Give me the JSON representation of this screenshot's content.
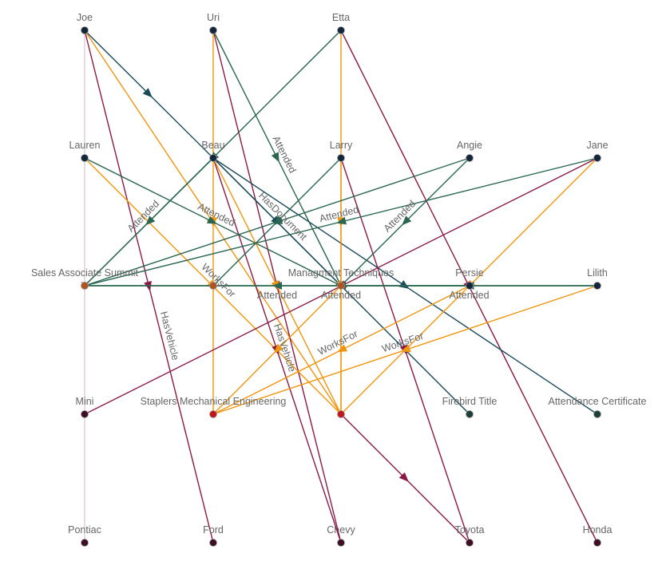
{
  "colors": {
    "Attended": "#2a6650",
    "WorksFor": "#f0950f",
    "HasVehicle": "#8a1a45",
    "HasDocument": "#1b4b5a",
    "HasVehicleFaint": "#d9b6c4",
    "node_person": "#14263a",
    "node_event": "#b0531e",
    "node_org": "#c0171b",
    "node_document": "#1e3f35",
    "node_vehicle": "#3d0f25",
    "label": "#666666"
  },
  "nodes": [
    {
      "id": "joe",
      "label": "Joe",
      "kind": "node_person"
    },
    {
      "id": "uri",
      "label": "Uri",
      "kind": "node_person"
    },
    {
      "id": "etta",
      "label": "Etta",
      "kind": "node_person"
    },
    {
      "id": "lauren",
      "label": "Lauren",
      "kind": "node_person"
    },
    {
      "id": "beau",
      "label": "Beau",
      "kind": "node_person"
    },
    {
      "id": "larry",
      "label": "Larry",
      "kind": "node_person"
    },
    {
      "id": "angie",
      "label": "Angie",
      "kind": "node_person"
    },
    {
      "id": "jane",
      "label": "Jane",
      "kind": "node_person"
    },
    {
      "id": "sas",
      "label": "Sales Associate Summit",
      "kind": "node_event"
    },
    {
      "id": "event2",
      "label": "",
      "kind": "node_event"
    },
    {
      "id": "mgmt",
      "label": "Managment Techniques",
      "kind": "node_event"
    },
    {
      "id": "persie",
      "label": "Persie",
      "kind": "node_person"
    },
    {
      "id": "lilith",
      "label": "Lilith",
      "kind": "node_person"
    },
    {
      "id": "mini",
      "label": "Mini",
      "kind": "node_vehicle"
    },
    {
      "id": "staplers",
      "label": "Staplers Mechanical Engineering",
      "kind": "node_org"
    },
    {
      "id": "org2",
      "label": "",
      "kind": "node_org"
    },
    {
      "id": "firebird",
      "label": "Firebird Title",
      "kind": "node_document"
    },
    {
      "id": "attcert",
      "label": "Attendance Certificate",
      "kind": "node_document"
    },
    {
      "id": "pontiac",
      "label": "Pontiac",
      "kind": "node_vehicle"
    },
    {
      "id": "ford",
      "label": "Ford",
      "kind": "node_vehicle"
    },
    {
      "id": "chevy",
      "label": "Chevy",
      "kind": "node_vehicle"
    },
    {
      "id": "toyota",
      "label": "Toyota",
      "kind": "node_vehicle"
    },
    {
      "id": "honda",
      "label": "Honda",
      "kind": "node_vehicle"
    }
  ],
  "edges": [
    {
      "from": "joe",
      "to": "pontiac",
      "type": "HasVehicleFaint",
      "label": ""
    },
    {
      "from": "joe",
      "to": "ford",
      "type": "HasVehicle",
      "label": "HasVehicle"
    },
    {
      "from": "joe",
      "to": "beau",
      "type": "HasDocument",
      "label": ""
    },
    {
      "from": "joe",
      "to": "org2",
      "type": "WorksFor",
      "label": ""
    },
    {
      "from": "uri",
      "to": "staplers",
      "type": "WorksFor",
      "label": ""
    },
    {
      "from": "uri",
      "to": "chevy",
      "type": "HasVehicle",
      "label": ""
    },
    {
      "from": "uri",
      "to": "mgmt",
      "type": "Attended",
      "label": "Attended"
    },
    {
      "from": "etta",
      "to": "sas",
      "type": "Attended",
      "label": ""
    },
    {
      "from": "etta",
      "to": "org2",
      "type": "WorksFor",
      "label": ""
    },
    {
      "from": "etta",
      "to": "honda",
      "type": "HasVehicle",
      "label": ""
    },
    {
      "from": "lauren",
      "to": "mgmt",
      "type": "Attended",
      "label": "Attended"
    },
    {
      "from": "lauren",
      "to": "org2",
      "type": "WorksFor",
      "label": "WorksFor"
    },
    {
      "from": "beau",
      "to": "sas",
      "type": "Attended",
      "label": "Attended"
    },
    {
      "from": "beau",
      "to": "mgmt",
      "type": "HasDocument",
      "label": "HasDocument"
    },
    {
      "from": "beau",
      "to": "firebird",
      "type": "HasDocument",
      "label": ""
    },
    {
      "from": "beau",
      "to": "attcert",
      "type": "HasDocument",
      "label": ""
    },
    {
      "from": "beau",
      "to": "chevy",
      "type": "HasVehicle",
      "label": "HasVehicle"
    },
    {
      "from": "beau",
      "to": "org2",
      "type": "WorksFor",
      "label": ""
    },
    {
      "from": "larry",
      "to": "event2",
      "type": "Attended",
      "label": ""
    },
    {
      "from": "larry",
      "to": "org2",
      "type": "WorksFor",
      "label": ""
    },
    {
      "from": "larry",
      "to": "toyota",
      "type": "HasVehicle",
      "label": ""
    },
    {
      "from": "angie",
      "to": "mgmt",
      "type": "Attended",
      "label": "Attended"
    },
    {
      "from": "angie",
      "to": "sas",
      "type": "Attended",
      "label": ""
    },
    {
      "from": "jane",
      "to": "sas",
      "type": "Attended",
      "label": "Attended"
    },
    {
      "from": "jane",
      "to": "mini",
      "type": "HasVehicle",
      "label": ""
    },
    {
      "from": "jane",
      "to": "org2",
      "type": "WorksFor",
      "label": ""
    },
    {
      "from": "persie",
      "to": "sas",
      "type": "Attended",
      "label": "Attended"
    },
    {
      "from": "lilith",
      "to": "sas",
      "type": "Attended",
      "label": "Attended"
    },
    {
      "from": "lilith",
      "to": "mgmt",
      "type": "Attended",
      "label": "Attended"
    },
    {
      "from": "lilith",
      "to": "staplers",
      "type": "WorksFor",
      "label": "WorksFor"
    },
    {
      "from": "persie",
      "to": "staplers",
      "type": "WorksFor",
      "label": "WorksFor"
    },
    {
      "from": "mgmt",
      "to": "staplers",
      "type": "WorksFor",
      "label": ""
    },
    {
      "from": "org2",
      "to": "toyota",
      "type": "HasVehicle",
      "label": ""
    }
  ]
}
